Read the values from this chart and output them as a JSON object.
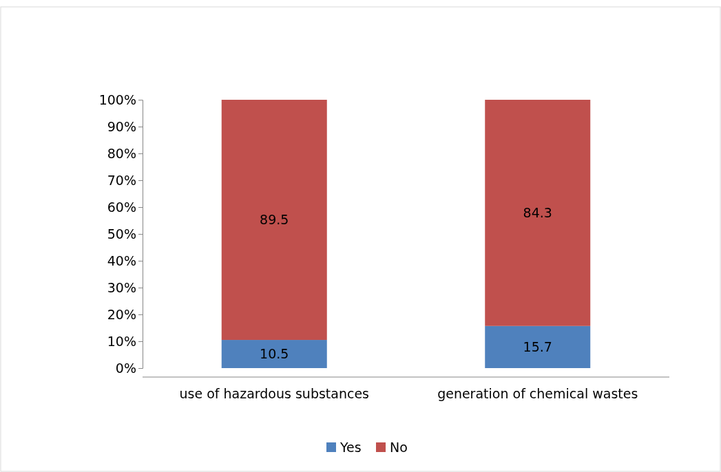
{
  "chart_data": {
    "type": "bar",
    "stacked": true,
    "categories": [
      "use of hazardous substances",
      "generation of chemical wastes"
    ],
    "series": [
      {
        "name": "Yes",
        "color": "#4f81bd",
        "values": [
          10.5,
          15.7
        ]
      },
      {
        "name": "No",
        "color": "#c0504d",
        "values": [
          89.5,
          84.3
        ]
      }
    ],
    "ylim": [
      0,
      100
    ],
    "yticks": [
      {
        "value": 0,
        "label": "0%"
      },
      {
        "value": 10,
        "label": "10%"
      },
      {
        "value": 20,
        "label": "20%"
      },
      {
        "value": 30,
        "label": "30%"
      },
      {
        "value": 40,
        "label": "40%"
      },
      {
        "value": 50,
        "label": "50%"
      },
      {
        "value": 60,
        "label": "60%"
      },
      {
        "value": 70,
        "label": "70%"
      },
      {
        "value": 80,
        "label": "80%"
      },
      {
        "value": 90,
        "label": "90%"
      },
      {
        "value": 100,
        "label": "100%"
      }
    ],
    "data_labels": true,
    "legend": "bottom",
    "grid": false
  }
}
